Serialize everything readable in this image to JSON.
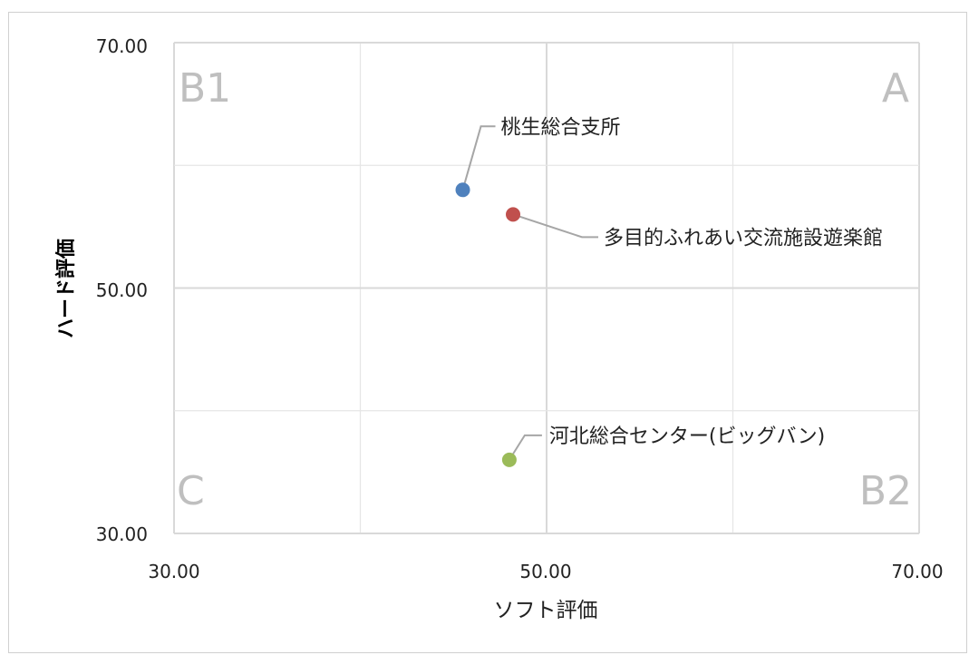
{
  "chart_data": {
    "type": "scatter",
    "title": "",
    "xlabel": "ソフト評価",
    "ylabel": "ハード評価",
    "xlim": [
      30,
      70
    ],
    "ylim": [
      30,
      70
    ],
    "x_ticks": [
      "30.00",
      "50.00",
      "70.00"
    ],
    "y_ticks": [
      "30.00",
      "50.00",
      "70.00"
    ],
    "grid": true,
    "quadrant_labels": {
      "top_left": "B1",
      "top_right": "A",
      "bottom_left": "C",
      "bottom_right": "B2"
    },
    "points": [
      {
        "label": "桃生総合支所",
        "x": 45.5,
        "y": 58.0,
        "color": "#4f81bd"
      },
      {
        "label": "多目的ふれあい交流施設遊楽館",
        "x": 48.2,
        "y": 56.0,
        "color": "#c0504d"
      },
      {
        "label": "河北総合センター(ビッグバン)",
        "x": 48.0,
        "y": 36.0,
        "color": "#9bbb59"
      }
    ]
  }
}
